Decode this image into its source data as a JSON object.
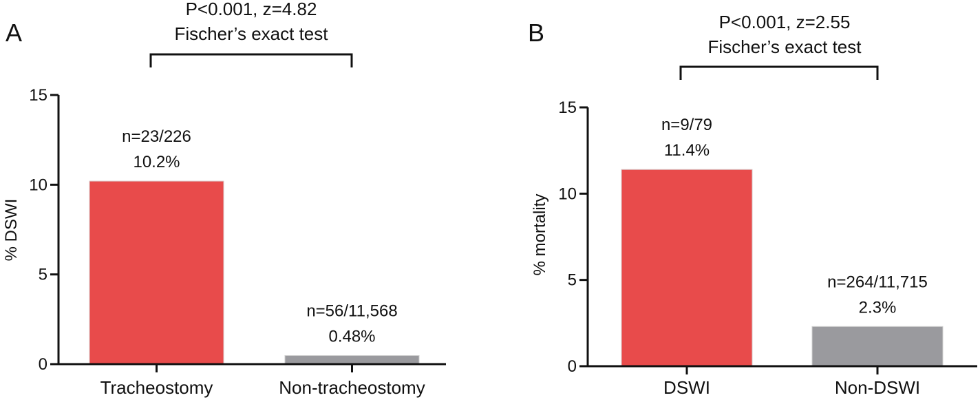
{
  "chart_data": [
    {
      "type": "bar",
      "panel": "A",
      "categories": [
        "Tracheostomy",
        "Non-tracheostomy"
      ],
      "values": [
        10.2,
        0.48
      ],
      "colors": [
        "#e84b4b",
        "#9a9a9e"
      ],
      "ylabel": "% DSWI",
      "xlabel": "",
      "ylim": [
        0,
        15
      ],
      "yticks": [
        "0",
        "5",
        "10",
        "15"
      ],
      "data_labels": [
        {
          "count": "n=23/226",
          "percent": "10.2%"
        },
        {
          "count": "n=56/11,568",
          "percent": "0.48%"
        }
      ],
      "comparison": {
        "line1": "P<0.001, z=4.82",
        "line2": "Fischer’s exact test"
      },
      "grid": false
    },
    {
      "type": "bar",
      "panel": "B",
      "categories": [
        "DSWI",
        "Non-DSWI"
      ],
      "values": [
        11.4,
        2.3
      ],
      "colors": [
        "#e84b4b",
        "#9a9a9e"
      ],
      "ylabel": "% mortality",
      "xlabel": "",
      "ylim": [
        0,
        15
      ],
      "yticks": [
        "0",
        "5",
        "10",
        "15"
      ],
      "data_labels": [
        {
          "count": "n=9/79",
          "percent": "11.4%"
        },
        {
          "count": "n=264/11,715",
          "percent": "2.3%"
        }
      ],
      "comparison": {
        "line1": "P<0.001, z=2.55",
        "line2": "Fischer’s exact test"
      },
      "grid": false
    }
  ]
}
